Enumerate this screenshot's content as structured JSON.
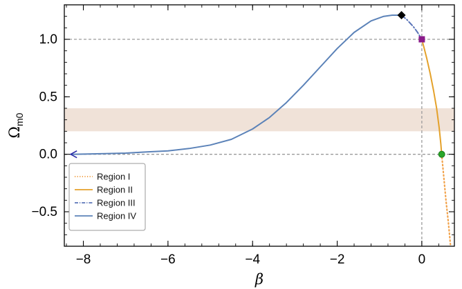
{
  "chart_data": {
    "type": "line",
    "xlabel": "β",
    "ylabel_main": "Ω",
    "ylabel_sub": "m0",
    "xlim": [
      -8.45,
      0.77
    ],
    "ylim": [
      -0.8,
      1.3
    ],
    "x_ticks": [
      -8,
      -6,
      -4,
      -2,
      0
    ],
    "x_tick_labels": [
      "−8",
      "−6",
      "−4",
      "−2",
      "0"
    ],
    "y_ticks": [
      -0.5,
      0.0,
      0.5,
      1.0
    ],
    "y_tick_labels": [
      "−0.5",
      "0.0",
      "0.5",
      "1.0"
    ],
    "grid": false,
    "reference_lines": {
      "horizontal": [
        0.0,
        1.0
      ],
      "vertical": [
        0.0
      ]
    },
    "shaded_band": {
      "y_from": 0.2,
      "y_to": 0.4,
      "color": "#f0e2d8"
    },
    "legend_position": "bottom-left",
    "series": [
      {
        "name": "Region I",
        "style": "dotted",
        "color": "#f2a24a",
        "points": [
          [
            0.47,
            0.0
          ],
          [
            0.52,
            -0.2
          ],
          [
            0.57,
            -0.4
          ],
          [
            0.63,
            -0.6
          ],
          [
            0.68,
            -0.8
          ]
        ]
      },
      {
        "name": "Region II",
        "style": "solid",
        "color": "#e4a12a",
        "points": [
          [
            0.0,
            1.0
          ],
          [
            0.05,
            0.93
          ],
          [
            0.12,
            0.83
          ],
          [
            0.2,
            0.7
          ],
          [
            0.28,
            0.55
          ],
          [
            0.35,
            0.4
          ],
          [
            0.41,
            0.23
          ],
          [
            0.45,
            0.09
          ],
          [
            0.47,
            0.0
          ]
        ]
      },
      {
        "name": "Region III",
        "style": "dashdot",
        "color": "#5a74b8",
        "points": [
          [
            -0.48,
            1.21
          ],
          [
            -0.35,
            1.17
          ],
          [
            -0.2,
            1.11
          ],
          [
            -0.1,
            1.06
          ],
          [
            0.0,
            1.0
          ]
        ]
      },
      {
        "name": "Region IV",
        "style": "solid",
        "color": "#5b82b8",
        "points": [
          [
            -8.3,
            0.0
          ],
          [
            -7.5,
            0.005
          ],
          [
            -7.0,
            0.01
          ],
          [
            -6.5,
            0.02
          ],
          [
            -6.0,
            0.03
          ],
          [
            -5.5,
            0.05
          ],
          [
            -5.0,
            0.08
          ],
          [
            -4.5,
            0.13
          ],
          [
            -4.0,
            0.22
          ],
          [
            -3.6,
            0.32
          ],
          [
            -3.2,
            0.45
          ],
          [
            -2.8,
            0.6
          ],
          [
            -2.4,
            0.76
          ],
          [
            -2.0,
            0.92
          ],
          [
            -1.6,
            1.06
          ],
          [
            -1.2,
            1.16
          ],
          [
            -0.9,
            1.2
          ],
          [
            -0.7,
            1.21
          ],
          [
            -0.48,
            1.21
          ]
        ]
      }
    ],
    "markers": [
      {
        "shape": "diamond",
        "color": "#000000",
        "x": -0.48,
        "y": 1.21
      },
      {
        "shape": "square",
        "color": "#8a1a8a",
        "x": 0.0,
        "y": 1.0
      },
      {
        "shape": "circle",
        "color": "#2aa62a",
        "x": 0.47,
        "y": 0.0
      },
      {
        "shape": "arrow-left",
        "color": "#2a2aa8",
        "x": -8.3,
        "y": 0.0
      }
    ]
  }
}
